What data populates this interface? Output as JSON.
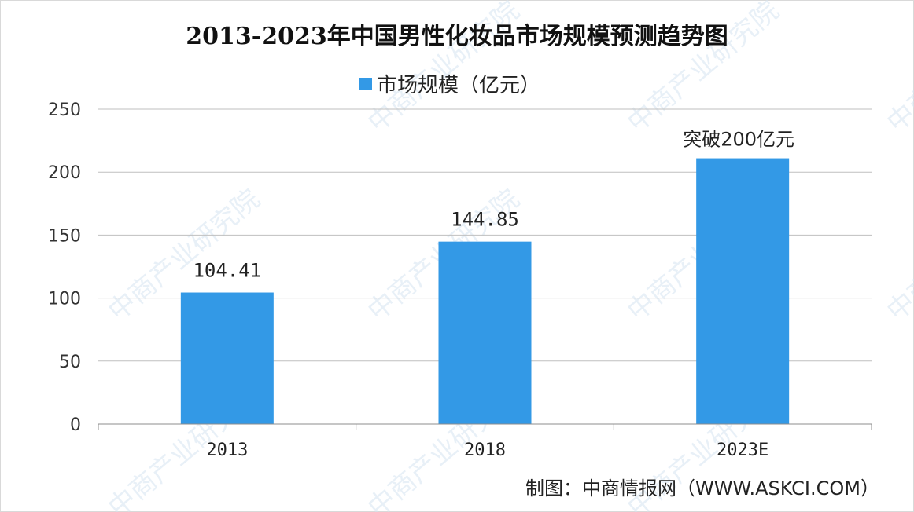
{
  "chart_data": {
    "type": "bar",
    "title": "2013-2023年中国男性化妆品市场规模预测趋势图",
    "categories": [
      "2013",
      "2018",
      "2023E"
    ],
    "series": [
      {
        "name": "市场规模（亿元）",
        "values": [
          104.41,
          144.85,
          211
        ]
      }
    ],
    "data_labels": [
      "104.41",
      "144.85",
      ""
    ],
    "annotations": [
      {
        "category": "2023E",
        "text": "突破200亿元"
      }
    ],
    "ylim": [
      0,
      250
    ],
    "yticks": [
      0,
      50,
      100,
      150,
      200,
      250
    ],
    "grid": true,
    "legend_position": "top",
    "bar_color": "#3399e6"
  },
  "source": "制图：中商情报网（WWW.ASKCI.COM）",
  "watermark": {
    "text": "中商产业研究院"
  }
}
